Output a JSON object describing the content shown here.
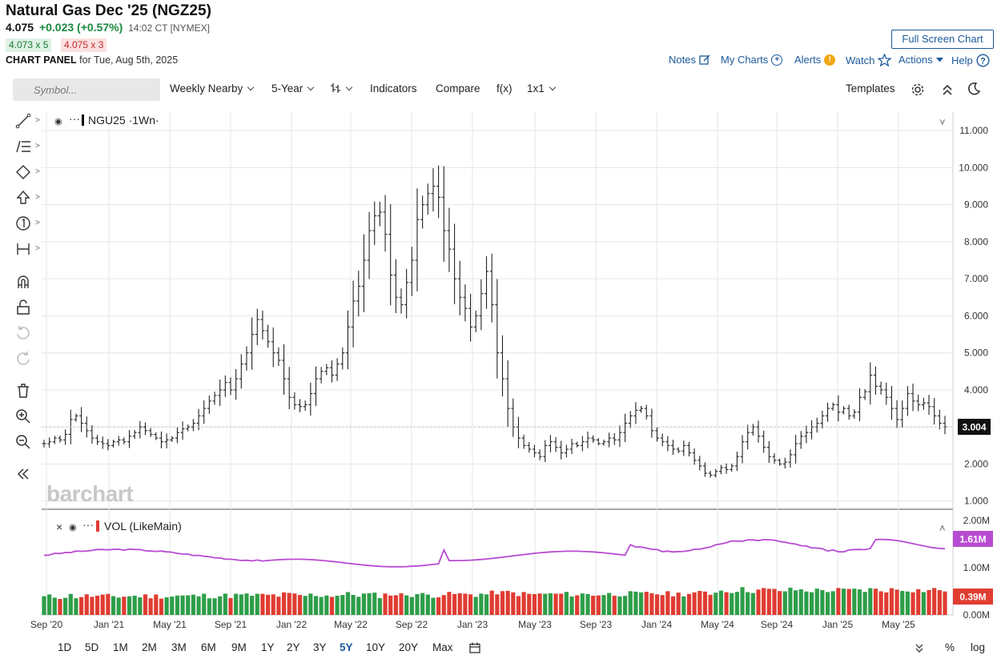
{
  "header": {
    "title": "Natural Gas Dec '25 (NGZ25)",
    "last": "4.075",
    "change": "+0.023 (+0.57%)",
    "time": "14:02 CT [NYMEX]",
    "bid": "4.073 x 5",
    "ask": "4.075 x 3",
    "panel_label": "CHART PANEL",
    "panel_date": "for Tue, Aug 5th, 2025",
    "fullscreen": "Full Screen Chart",
    "links": {
      "notes": "Notes",
      "mycharts": "My Charts",
      "alerts": "Alerts",
      "watch": "Watch",
      "actions": "Actions",
      "help": "Help"
    },
    "alert_badge": "!"
  },
  "toolbar": {
    "symbol_placeholder": "Symbol...",
    "interval": "Weekly Nearby",
    "range": "5-Year",
    "indicators": "Indicators",
    "compare": "Compare",
    "fx": "f(x)",
    "layout": "1x1",
    "templates": "Templates"
  },
  "timeframes": [
    "1D",
    "5D",
    "1M",
    "2M",
    "3M",
    "6M",
    "9M",
    "1Y",
    "2Y",
    "3Y",
    "5Y",
    "10Y",
    "20Y",
    "Max"
  ],
  "active_timeframe": "5Y",
  "bottom_right": {
    "pct": "%",
    "log": "log"
  },
  "watermark": "barchart",
  "colors": {
    "up": "#2e9e48",
    "down": "#e03c31",
    "ma": "#b84bd1",
    "price_label": "#111111"
  },
  "chart_data": {
    "type": "ohlc",
    "symbol_label": "NGU25 ·1Wn·",
    "x_ticks": [
      "Sep '20",
      "Jan '21",
      "May '21",
      "Sep '21",
      "Jan '22",
      "May '22",
      "Sep '22",
      "Jan '23",
      "May '23",
      "Sep '23",
      "Jan '24",
      "May '24",
      "Sep '24",
      "Jan '25",
      "May '25"
    ],
    "y_ticks": [
      "1.000",
      "2.000",
      "3.000",
      "4.000",
      "5.000",
      "6.000",
      "7.000",
      "8.000",
      "9.000",
      "10.000",
      "11.000"
    ],
    "ylim": [
      1,
      11
    ],
    "last_price_label": "3.004",
    "weekly_close": [
      2.55,
      2.6,
      2.7,
      2.65,
      2.8,
      3.2,
      3.3,
      3.1,
      2.9,
      2.7,
      2.6,
      2.55,
      2.5,
      2.6,
      2.65,
      2.6,
      2.75,
      2.85,
      3.0,
      2.9,
      2.8,
      2.7,
      2.6,
      2.65,
      2.7,
      2.85,
      2.95,
      3.0,
      3.1,
      3.3,
      3.5,
      3.7,
      3.85,
      4.0,
      4.2,
      4.0,
      4.3,
      4.7,
      5.0,
      5.5,
      5.9,
      5.6,
      5.3,
      5.0,
      4.8,
      4.3,
      3.8,
      3.6,
      3.55,
      3.6,
      3.9,
      4.3,
      4.5,
      4.6,
      4.4,
      4.7,
      5.0,
      5.7,
      6.4,
      6.8,
      7.5,
      8.3,
      8.7,
      8.8,
      8.2,
      7.1,
      6.5,
      6.3,
      6.9,
      7.5,
      8.6,
      9.0,
      9.3,
      9.5,
      9.2,
      8.3,
      7.8,
      7.0,
      6.5,
      6.2,
      5.7,
      6.0,
      6.6,
      7.2,
      6.3,
      5.0,
      4.3,
      3.5,
      3.0,
      2.7,
      2.5,
      2.4,
      2.3,
      2.2,
      2.5,
      2.6,
      2.45,
      2.3,
      2.4,
      2.55,
      2.5,
      2.6,
      2.7,
      2.65,
      2.55,
      2.6,
      2.7,
      2.65,
      2.85,
      3.1,
      3.3,
      3.45,
      3.5,
      3.3,
      2.9,
      2.7,
      2.6,
      2.5,
      2.4,
      2.35,
      2.5,
      2.3,
      2.1,
      1.95,
      1.75,
      1.7,
      1.8,
      1.9,
      1.85,
      1.95,
      2.2,
      2.6,
      2.85,
      3.0,
      2.75,
      2.45,
      2.2,
      2.1,
      2.0,
      2.05,
      2.25,
      2.55,
      2.75,
      2.85,
      3.0,
      3.1,
      3.3,
      3.5,
      3.6,
      3.4,
      3.5,
      3.3,
      3.4,
      3.8,
      3.95,
      4.4,
      4.1,
      4.0,
      3.8,
      3.5,
      3.2,
      3.5,
      3.9,
      3.7,
      3.6,
      3.65,
      3.55,
      3.3,
      3.1,
      3.004
    ],
    "volume": {
      "label": "VOL (LikeMain)",
      "y_ticks": [
        "0.00M",
        "1.00M",
        "2.00M"
      ],
      "ylim": [
        0,
        2
      ],
      "ma_label": "1.61M",
      "last_label": "0.39M"
    }
  }
}
